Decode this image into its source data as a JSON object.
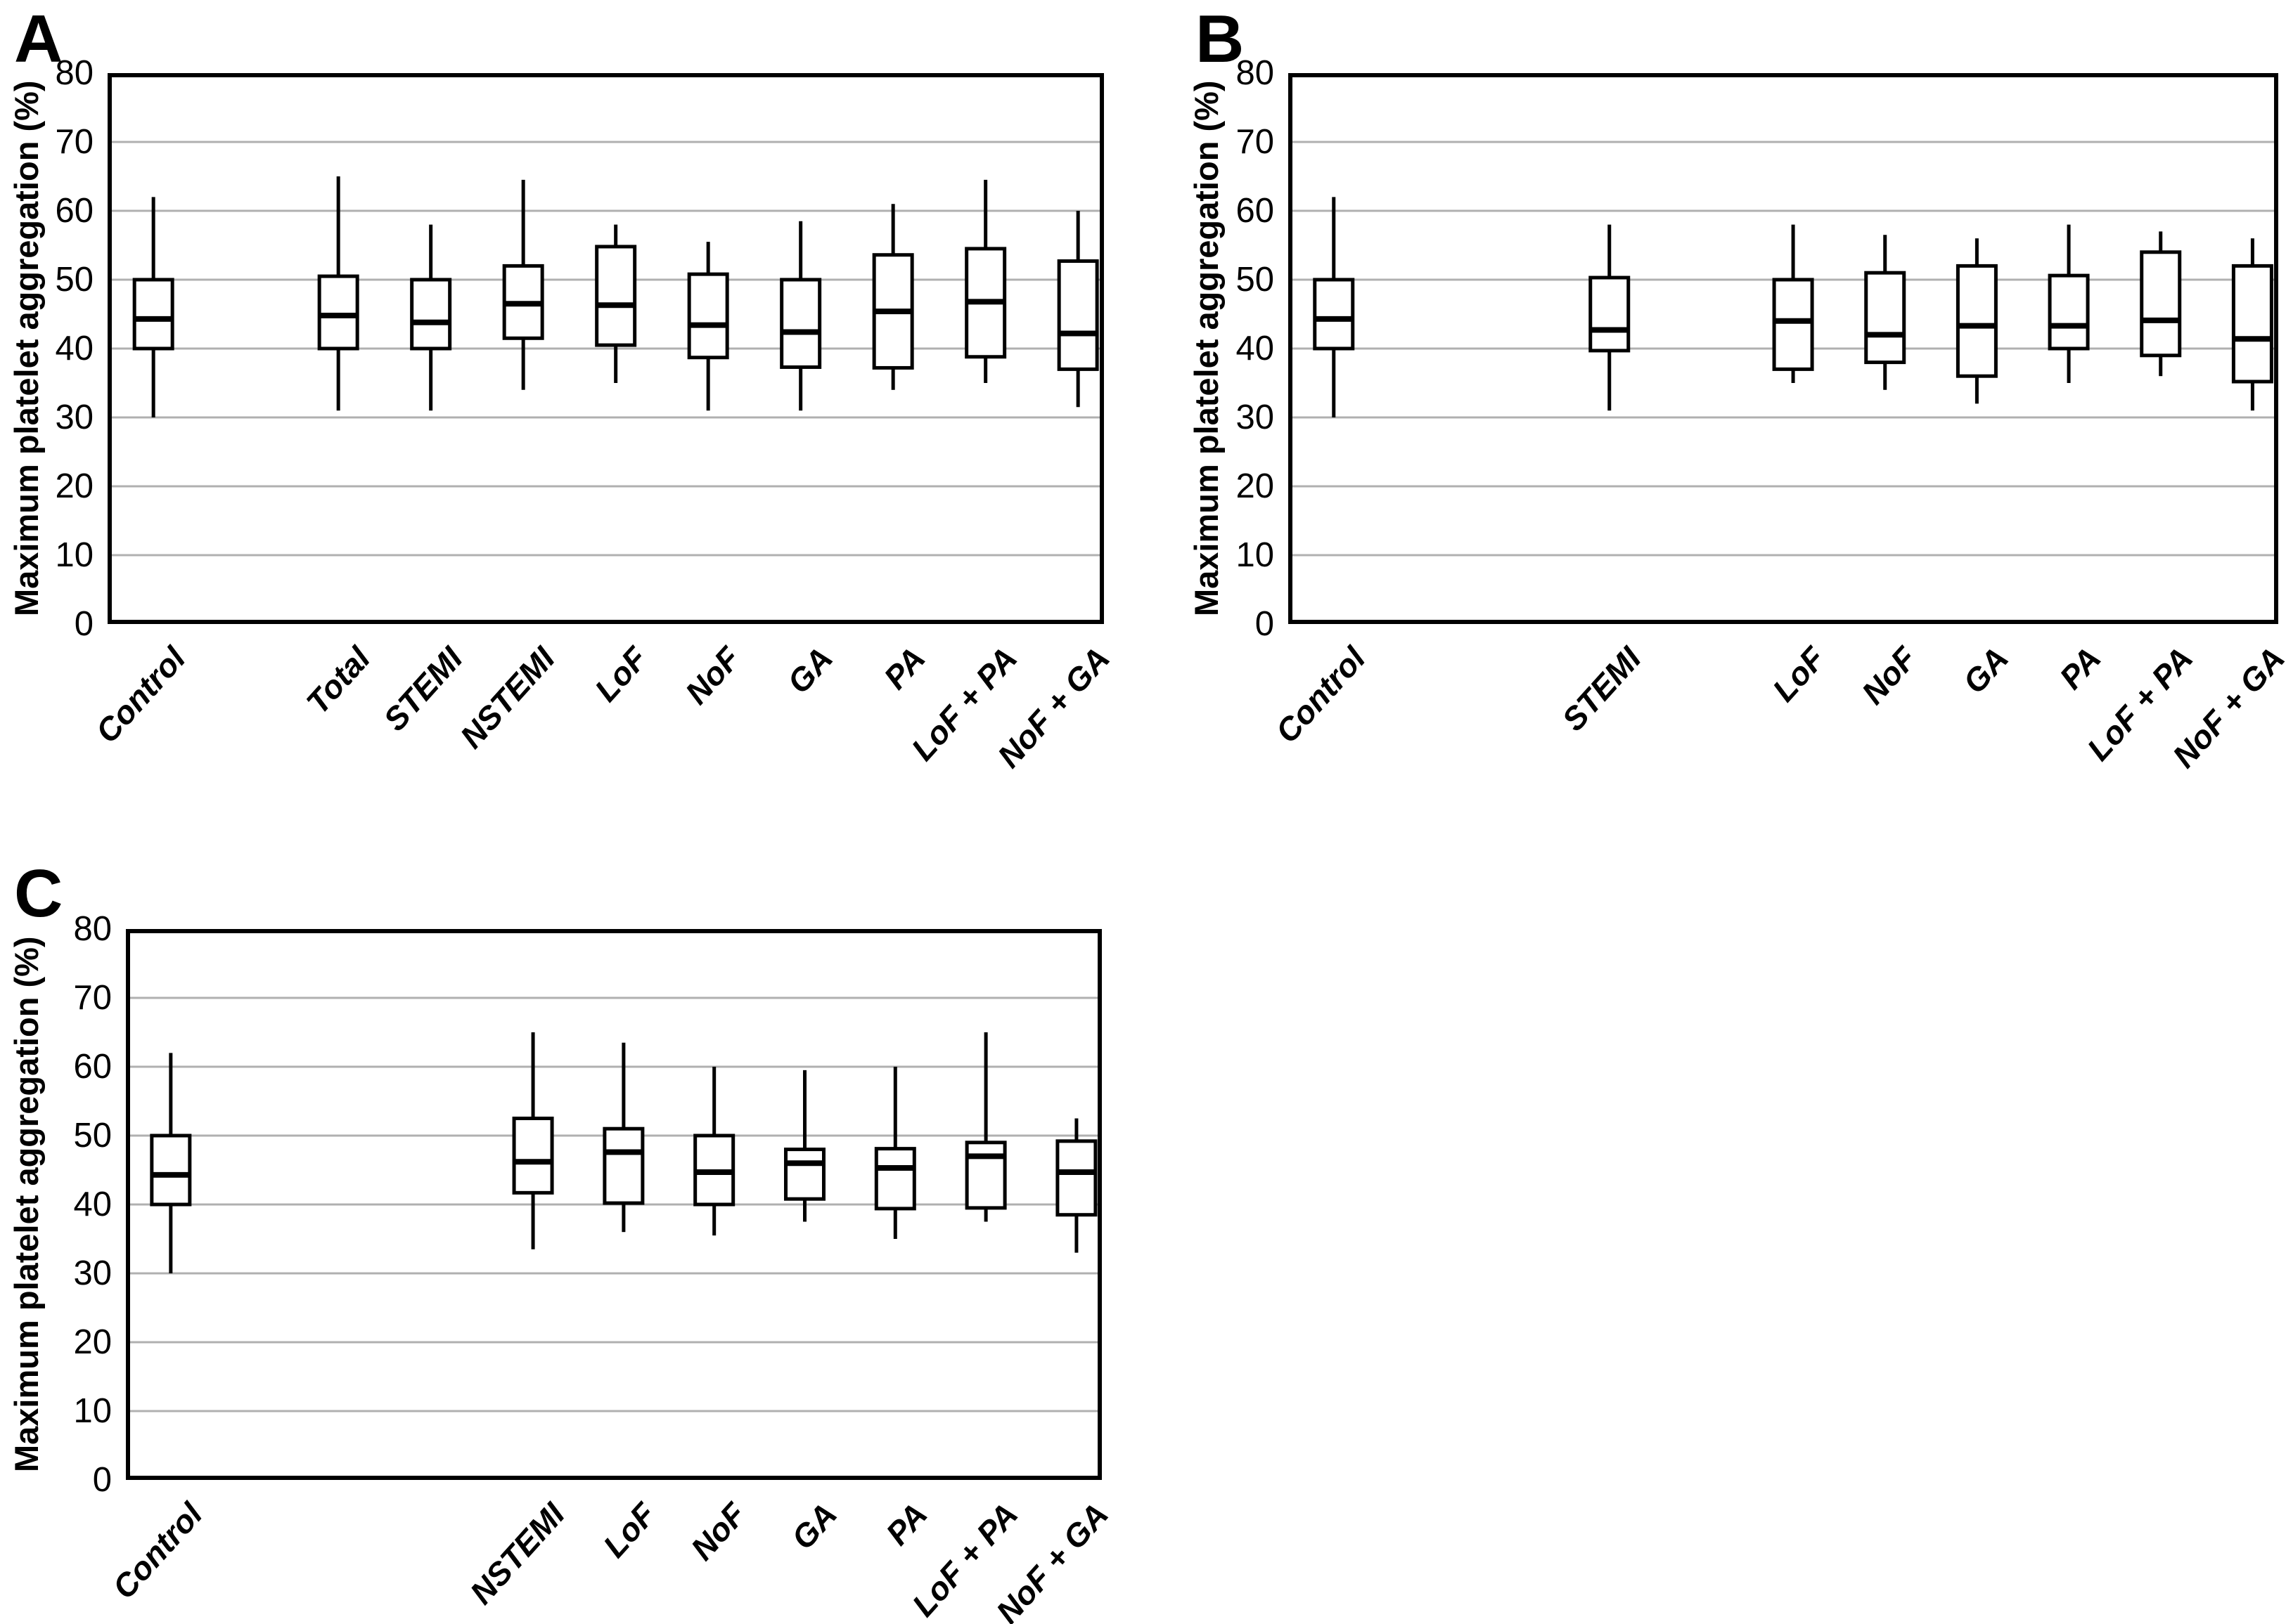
{
  "figure": {
    "background": "#ffffff",
    "ink_color": "#000000",
    "grid_color": "#b0b0b0"
  },
  "chart_data": [
    {
      "type": "box",
      "panel_label": "A",
      "ylabel": "Maximum platelet aggregation (%)",
      "xlabel": "",
      "ylim": [
        0,
        80
      ],
      "yticks": [
        0,
        10,
        20,
        30,
        40,
        50,
        60,
        70,
        80
      ],
      "grid": true,
      "legend": "none",
      "categories": [
        "Control",
        "Total",
        "STEMI",
        "NSTEMI",
        "LoF",
        "NoF",
        "GA",
        "PA",
        "LoF + PA",
        "NoF + GA"
      ],
      "boxes": [
        {
          "label": "Control",
          "slot": 0,
          "low": 30,
          "q1": 40,
          "median": 44.3,
          "q3": 50,
          "high": 62
        },
        {
          "label": "Total",
          "slot": 2,
          "low": 31,
          "q1": 40,
          "median": 44.8,
          "q3": 50.5,
          "high": 65
        },
        {
          "label": "STEMI",
          "slot": 3,
          "low": 31,
          "q1": 40,
          "median": 43.8,
          "q3": 50,
          "high": 58
        },
        {
          "label": "NSTEMI",
          "slot": 4,
          "low": 34,
          "q1": 41.5,
          "median": 46.5,
          "q3": 52,
          "high": 64.5
        },
        {
          "label": "LoF",
          "slot": 5,
          "low": 35,
          "q1": 40.5,
          "median": 46.3,
          "q3": 54.8,
          "high": 58
        },
        {
          "label": "NoF",
          "slot": 6,
          "low": 31,
          "q1": 38.7,
          "median": 43.4,
          "q3": 50.8,
          "high": 55.5
        },
        {
          "label": "GA",
          "slot": 7,
          "low": 31,
          "q1": 37.3,
          "median": 42.4,
          "q3": 50,
          "high": 58.5
        },
        {
          "label": "PA",
          "slot": 8,
          "low": 34,
          "q1": 37.2,
          "median": 45.4,
          "q3": 53.6,
          "high": 61
        },
        {
          "label": "LoF + PA",
          "slot": 9,
          "low": 35,
          "q1": 38.8,
          "median": 46.8,
          "q3": 54.5,
          "high": 64.5
        },
        {
          "label": "NoF + GA",
          "slot": 10,
          "low": 31.5,
          "q1": 37,
          "median": 42.2,
          "q3": 52.7,
          "high": 60
        }
      ]
    },
    {
      "type": "box",
      "panel_label": "B",
      "ylabel": "Maximum platelet aggregation (%)",
      "xlabel": "",
      "ylim": [
        0,
        80
      ],
      "yticks": [
        0,
        10,
        20,
        30,
        40,
        50,
        60,
        70,
        80
      ],
      "grid": true,
      "legend": "none",
      "categories": [
        "Control",
        "STEMI",
        "LoF",
        "NoF",
        "GA",
        "PA",
        "LoF + PA",
        "NoF + GA"
      ],
      "boxes": [
        {
          "label": "Control",
          "slot": 0,
          "low": 30,
          "q1": 40,
          "median": 44.3,
          "q3": 50,
          "high": 62
        },
        {
          "label": "STEMI",
          "slot": 3,
          "low": 31,
          "q1": 39.7,
          "median": 42.7,
          "q3": 50.3,
          "high": 58
        },
        {
          "label": "LoF",
          "slot": 5,
          "low": 35,
          "q1": 37,
          "median": 44,
          "q3": 50,
          "high": 58
        },
        {
          "label": "NoF",
          "slot": 6,
          "low": 34,
          "q1": 38,
          "median": 42,
          "q3": 51,
          "high": 56.5
        },
        {
          "label": "GA",
          "slot": 7,
          "low": 32,
          "q1": 36,
          "median": 43.3,
          "q3": 52,
          "high": 56
        },
        {
          "label": "PA",
          "slot": 8,
          "low": 35,
          "q1": 40,
          "median": 43.3,
          "q3": 50.6,
          "high": 58
        },
        {
          "label": "LoF + PA",
          "slot": 9,
          "low": 36,
          "q1": 39,
          "median": 44.1,
          "q3": 54,
          "high": 57
        },
        {
          "label": "NoF + GA",
          "slot": 10,
          "low": 31,
          "q1": 35.2,
          "median": 41.4,
          "q3": 52,
          "high": 56
        }
      ]
    },
    {
      "type": "box",
      "panel_label": "C",
      "ylabel": "Maximum platelet aggregation (%)",
      "xlabel": "",
      "ylim": [
        0,
        80
      ],
      "yticks": [
        0,
        10,
        20,
        30,
        40,
        50,
        60,
        70,
        80
      ],
      "grid": true,
      "legend": "none",
      "categories": [
        "Control",
        "NSTEMI",
        "LoF",
        "NoF",
        "GA",
        "PA",
        "LoF + PA",
        "NoF + GA"
      ],
      "boxes": [
        {
          "label": "Control",
          "slot": 0,
          "low": 30,
          "q1": 40,
          "median": 44.3,
          "q3": 50,
          "high": 62
        },
        {
          "label": "NSTEMI",
          "slot": 4,
          "low": 33.5,
          "q1": 41.7,
          "median": 46.2,
          "q3": 52.5,
          "high": 65
        },
        {
          "label": "LoF",
          "slot": 5,
          "low": 36,
          "q1": 40.2,
          "median": 47.6,
          "q3": 51,
          "high": 63.5
        },
        {
          "label": "NoF",
          "slot": 6,
          "low": 35.5,
          "q1": 40,
          "median": 44.7,
          "q3": 50,
          "high": 60
        },
        {
          "label": "GA",
          "slot": 7,
          "low": 37.5,
          "q1": 40.8,
          "median": 46,
          "q3": 48,
          "high": 59.5
        },
        {
          "label": "PA",
          "slot": 8,
          "low": 35,
          "q1": 39.4,
          "median": 45.3,
          "q3": 48.1,
          "high": 60
        },
        {
          "label": "LoF + PA",
          "slot": 9,
          "low": 37.5,
          "q1": 39.5,
          "median": 47,
          "q3": 49,
          "high": 65
        },
        {
          "label": "NoF + GA",
          "slot": 10,
          "low": 33,
          "q1": 38.5,
          "median": 44.7,
          "q3": 49.2,
          "high": 52.5
        }
      ]
    }
  ]
}
